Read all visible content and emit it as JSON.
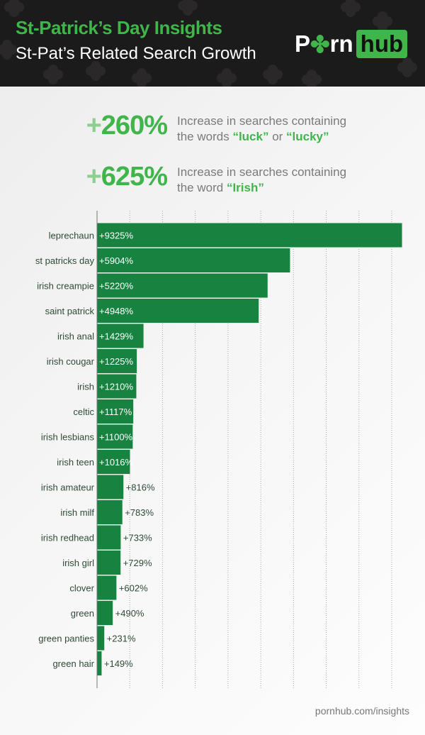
{
  "header": {
    "title": "St-Patrick’s Day Insights",
    "subtitle": "St-Pat’s Related Search Growth",
    "logo_left": "P",
    "logo_clover": "✤",
    "logo_mid": "rn",
    "logo_right": "hub"
  },
  "stats": [
    {
      "value": "+",
      "number": "260%",
      "line1": "Increase in searches containing",
      "line2_pre": "the words ",
      "hl1": "“luck”",
      "mid": " or ",
      "hl2": "“lucky”"
    },
    {
      "value": "+",
      "number": "625%",
      "line1": "Increase in searches containing",
      "line2_pre": "the word ",
      "hl1": "“Irish”",
      "mid": "",
      "hl2": ""
    }
  ],
  "colors": {
    "bar": "#188240",
    "accent": "#3fb54a",
    "header_bg": "#1c1b1b"
  },
  "chart_data": {
    "type": "bar",
    "orientation": "horizontal",
    "title": "St-Pat’s Related Search Growth",
    "categories": [
      "leprechaun",
      "st patricks day",
      "irish creampie",
      "saint patrick",
      "irish anal",
      "irish cougar",
      "irish",
      "celtic",
      "irish lesbians",
      "irish teen",
      "irish amateur",
      "irish milf",
      "irish redhead",
      "irish girl",
      "clover",
      "green",
      "green panties",
      "green hair"
    ],
    "values": [
      9325,
      5904,
      5220,
      4948,
      1429,
      1225,
      1210,
      1117,
      1100,
      1016,
      816,
      783,
      733,
      729,
      602,
      490,
      231,
      149
    ],
    "labels": [
      "+9325%",
      "+5904%",
      "+5220%",
      "+4948%",
      "+1429%",
      "+1225%",
      "+1210%",
      "+1117%",
      "+1100%",
      "+1016%",
      "+816%",
      "+783%",
      "+733%",
      "+729%",
      "+602%",
      "+490%",
      "+231%",
      "+149%"
    ],
    "unit": "%",
    "xlim": [
      0,
      10000
    ],
    "grid": true,
    "grid_step": 1000
  },
  "footer": "pornhub.com/insights"
}
